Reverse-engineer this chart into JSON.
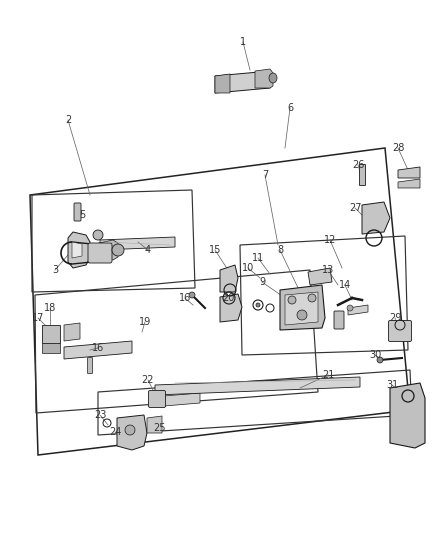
{
  "bg_color": "#ffffff",
  "fg_color": "#1a1a1a",
  "gray1": "#888888",
  "gray2": "#aaaaaa",
  "gray3": "#cccccc",
  "gray4": "#dddddd",
  "figsize": [
    4.38,
    5.33
  ],
  "dpi": 100,
  "title_color": "#222222",
  "label_fs": 7.0,
  "line_lw": 0.7,
  "border_lw": 1.0,
  "part_lw": 0.6
}
